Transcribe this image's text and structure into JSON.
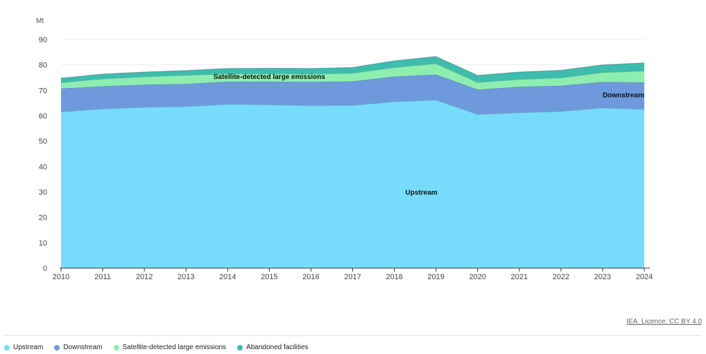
{
  "chart_data": {
    "type": "area",
    "stacked": true,
    "unit": "Mt",
    "x": [
      2010,
      2011,
      2012,
      2013,
      2014,
      2015,
      2016,
      2017,
      2018,
      2019,
      2020,
      2021,
      2022,
      2023,
      2024
    ],
    "ylim": [
      0,
      90
    ],
    "yticks": [
      0,
      10,
      20,
      30,
      40,
      50,
      60,
      70,
      80,
      90
    ],
    "grid": true,
    "legend_position": "bottom-left",
    "series": [
      {
        "name": "Upstream",
        "color": "#77dcfb",
        "values": [
          61.5,
          62.7,
          63.3,
          63.6,
          64.5,
          64.3,
          64.0,
          64.1,
          65.5,
          66.2,
          60.5,
          61.2,
          61.7,
          63.1,
          62.5
        ]
      },
      {
        "name": "Downstream",
        "color": "#6f99dd",
        "values": [
          9.2,
          8.9,
          8.9,
          8.9,
          8.9,
          9.1,
          9.3,
          9.4,
          9.9,
          10.0,
          9.8,
          10.2,
          10.1,
          10.2,
          10.6
        ]
      },
      {
        "name": "Satellite-detected large emissions",
        "color": "#8deeb0",
        "values": [
          2.3,
          2.9,
          3.1,
          3.4,
          3.1,
          3.1,
          3.1,
          3.2,
          3.6,
          4.3,
          2.8,
          2.9,
          3.1,
          3.7,
          4.5
        ]
      },
      {
        "name": "Abandoned facilities",
        "color": "#3dbdad",
        "values": [
          1.8,
          1.9,
          1.9,
          1.9,
          2.1,
          2.2,
          2.2,
          2.3,
          2.6,
          2.8,
          2.8,
          2.9,
          3.0,
          3.0,
          3.2
        ]
      }
    ],
    "annotations": [
      {
        "text": "Upstream",
        "series": "Upstream"
      },
      {
        "text": "Downstream",
        "series": "Downstream"
      },
      {
        "text": "Satellite-detected large emissions",
        "series": "Satellite-detected large emissions"
      }
    ]
  },
  "source_text": "IEA. Licence: CC BY 4.0"
}
